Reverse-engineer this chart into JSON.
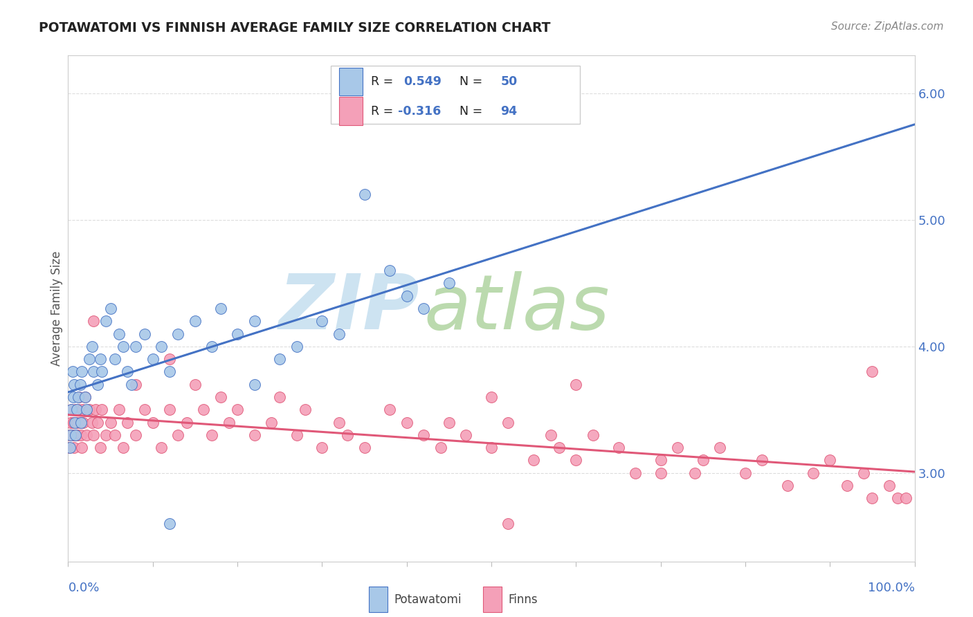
{
  "title": "POTAWATOMI VS FINNISH AVERAGE FAMILY SIZE CORRELATION CHART",
  "source": "Source: ZipAtlas.com",
  "ylabel": "Average Family Size",
  "yticks": [
    3.0,
    4.0,
    5.0,
    6.0
  ],
  "xlim": [
    0.0,
    1.0
  ],
  "ylim": [
    2.3,
    6.3
  ],
  "color_blue": "#A8C8E8",
  "color_pink": "#F4A0B8",
  "edge_blue": "#4472C4",
  "edge_pink": "#E05878",
  "line_blue": "#4472C4",
  "line_pink": "#E05878",
  "dash_color": "#A8C8E8",
  "title_color": "#222222",
  "source_color": "#888888",
  "label_color": "#4472C4",
  "ylabel_color": "#555555",
  "grid_color": "#DDDDDD",
  "watermark_zip_color": "#C8E0F0",
  "watermark_atlas_color": "#B0D4A0",
  "potawatomi_x": [
    0.002,
    0.003,
    0.004,
    0.005,
    0.006,
    0.007,
    0.008,
    0.009,
    0.01,
    0.012,
    0.014,
    0.015,
    0.016,
    0.02,
    0.022,
    0.025,
    0.028,
    0.03,
    0.035,
    0.038,
    0.04,
    0.045,
    0.05,
    0.055,
    0.06,
    0.065,
    0.07,
    0.075,
    0.08,
    0.09,
    0.1,
    0.11,
    0.12,
    0.13,
    0.15,
    0.17,
    0.18,
    0.2,
    0.22,
    0.25,
    0.27,
    0.3,
    0.32,
    0.35,
    0.38,
    0.4,
    0.42,
    0.45,
    0.12,
    0.22
  ],
  "potawatomi_y": [
    3.2,
    3.3,
    3.5,
    3.8,
    3.6,
    3.7,
    3.4,
    3.3,
    3.5,
    3.6,
    3.7,
    3.4,
    3.8,
    3.6,
    3.5,
    3.9,
    4.0,
    3.8,
    3.7,
    3.9,
    3.8,
    4.2,
    4.3,
    3.9,
    4.1,
    4.0,
    3.8,
    3.7,
    4.0,
    4.1,
    3.9,
    4.0,
    3.8,
    4.1,
    4.2,
    4.0,
    4.3,
    4.1,
    4.2,
    3.9,
    4.0,
    4.2,
    4.1,
    5.2,
    4.6,
    4.4,
    4.3,
    4.5,
    2.6,
    3.7
  ],
  "finns_x": [
    0.001,
    0.002,
    0.003,
    0.004,
    0.005,
    0.006,
    0.007,
    0.008,
    0.009,
    0.01,
    0.011,
    0.012,
    0.013,
    0.014,
    0.015,
    0.016,
    0.017,
    0.018,
    0.02,
    0.022,
    0.025,
    0.028,
    0.03,
    0.032,
    0.035,
    0.038,
    0.04,
    0.045,
    0.05,
    0.055,
    0.06,
    0.065,
    0.07,
    0.08,
    0.09,
    0.1,
    0.11,
    0.12,
    0.13,
    0.14,
    0.15,
    0.16,
    0.17,
    0.18,
    0.19,
    0.2,
    0.22,
    0.24,
    0.25,
    0.27,
    0.28,
    0.3,
    0.32,
    0.33,
    0.35,
    0.38,
    0.4,
    0.42,
    0.44,
    0.45,
    0.47,
    0.5,
    0.52,
    0.55,
    0.57,
    0.58,
    0.6,
    0.62,
    0.65,
    0.67,
    0.7,
    0.72,
    0.74,
    0.75,
    0.77,
    0.8,
    0.82,
    0.85,
    0.88,
    0.9,
    0.92,
    0.94,
    0.95,
    0.97,
    0.98,
    0.99,
    0.12,
    0.08,
    0.03,
    0.5,
    0.6,
    0.7,
    0.52,
    0.95
  ],
  "finns_y": [
    3.2,
    3.3,
    3.4,
    3.5,
    3.3,
    3.4,
    3.2,
    3.3,
    3.5,
    3.4,
    3.3,
    3.5,
    3.6,
    3.4,
    3.3,
    3.2,
    3.5,
    3.4,
    3.6,
    3.3,
    3.5,
    3.4,
    3.3,
    3.5,
    3.4,
    3.2,
    3.5,
    3.3,
    3.4,
    3.3,
    3.5,
    3.2,
    3.4,
    3.3,
    3.5,
    3.4,
    3.2,
    3.5,
    3.3,
    3.4,
    3.7,
    3.5,
    3.3,
    3.6,
    3.4,
    3.5,
    3.3,
    3.4,
    3.6,
    3.3,
    3.5,
    3.2,
    3.4,
    3.3,
    3.2,
    3.5,
    3.4,
    3.3,
    3.2,
    3.4,
    3.3,
    3.2,
    3.4,
    3.1,
    3.3,
    3.2,
    3.1,
    3.3,
    3.2,
    3.0,
    3.1,
    3.2,
    3.0,
    3.1,
    3.2,
    3.0,
    3.1,
    2.9,
    3.0,
    3.1,
    2.9,
    3.0,
    3.8,
    2.9,
    2.8,
    2.8,
    3.9,
    3.7,
    4.2,
    3.6,
    3.7,
    3.0,
    2.6,
    2.8
  ]
}
